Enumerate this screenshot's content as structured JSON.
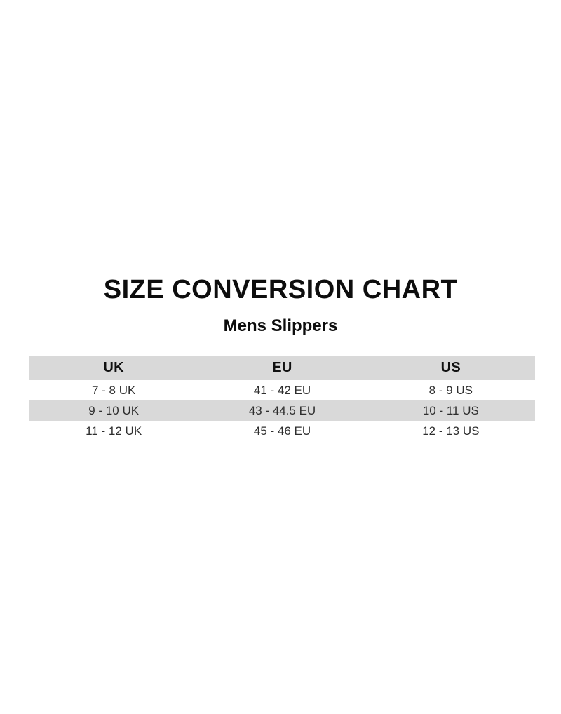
{
  "page": {
    "title": "SIZE CONVERSION CHART",
    "subtitle": "Mens Slippers"
  },
  "table": {
    "headers": [
      "UK",
      "EU",
      "US"
    ],
    "rows": [
      [
        "7 - 8 UK",
        "41 - 42 EU",
        "8 - 9 US"
      ],
      [
        "9 - 10 UK",
        "43 - 44.5 EU",
        "10 - 11 US"
      ],
      [
        "11 - 12 UK",
        "45 - 46 EU",
        "12 - 13 US"
      ]
    ],
    "colors": {
      "header_bg": "#d9d9d9",
      "alt_row_bg": "#d9d9d9",
      "row_bg": "#ffffff",
      "header_text": "#111111",
      "cell_text": "#2e2e2e"
    }
  }
}
